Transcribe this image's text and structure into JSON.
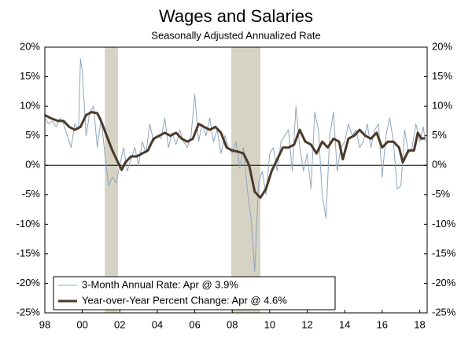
{
  "chart_data": {
    "type": "line",
    "title": "Wages and Salaries",
    "subtitle": "Seasonally Adjusted Annualized Rate",
    "xlim": [
      1998,
      2018.4
    ],
    "xticks": [
      {
        "value": 1998,
        "label": "98"
      },
      {
        "value": 2000,
        "label": "00"
      },
      {
        "value": 2002,
        "label": "02"
      },
      {
        "value": 2004,
        "label": "04"
      },
      {
        "value": 2006,
        "label": "06"
      },
      {
        "value": 2008,
        "label": "08"
      },
      {
        "value": 2010,
        "label": "10"
      },
      {
        "value": 2012,
        "label": "12"
      },
      {
        "value": 2014,
        "label": "14"
      },
      {
        "value": 2016,
        "label": "16"
      },
      {
        "value": 2018,
        "label": "18"
      }
    ],
    "ylim": [
      -25,
      20
    ],
    "yticks": [
      {
        "value": 20,
        "label": "20%"
      },
      {
        "value": 15,
        "label": "15%"
      },
      {
        "value": 10,
        "label": "10%"
      },
      {
        "value": 5,
        "label": "5%"
      },
      {
        "value": 0,
        "label": "0%"
      },
      {
        "value": -5,
        "label": "-5%"
      },
      {
        "value": -10,
        "label": "-10%"
      },
      {
        "value": -15,
        "label": "-15%"
      },
      {
        "value": -20,
        "label": "-20%"
      },
      {
        "value": -25,
        "label": "-25%"
      }
    ],
    "shaded_ranges": [
      [
        2001.2,
        2001.9
      ],
      [
        2007.95,
        2009.5
      ]
    ],
    "shade_color": "#d6d3c4",
    "legend": "lower left",
    "series": [
      {
        "name": "3-Month Annual Rate: Apr @ 3.9%",
        "color": "#8fa5bd",
        "width": 1,
        "x": [
          1998.0,
          1998.2,
          1998.4,
          1998.6,
          1998.8,
          1999.0,
          1999.2,
          1999.4,
          1999.6,
          1999.8,
          1999.9,
          2000.0,
          2000.2,
          2000.4,
          2000.6,
          2000.8,
          2001.0,
          2001.2,
          2001.4,
          2001.6,
          2001.8,
          2002.0,
          2002.2,
          2002.4,
          2002.6,
          2002.8,
          2003.0,
          2003.2,
          2003.4,
          2003.6,
          2003.8,
          2004.0,
          2004.2,
          2004.4,
          2004.6,
          2004.8,
          2005.0,
          2005.2,
          2005.4,
          2005.6,
          2005.8,
          2006.0,
          2006.2,
          2006.4,
          2006.6,
          2006.8,
          2007.0,
          2007.2,
          2007.4,
          2007.6,
          2007.8,
          2008.0,
          2008.2,
          2008.4,
          2008.6,
          2008.8,
          2009.0,
          2009.2,
          2009.4,
          2009.6,
          2009.8,
          2010.0,
          2010.2,
          2010.4,
          2010.6,
          2010.8,
          2011.0,
          2011.2,
          2011.4,
          2011.6,
          2011.8,
          2012.0,
          2012.2,
          2012.4,
          2012.6,
          2012.8,
          2013.0,
          2013.2,
          2013.4,
          2013.6,
          2013.8,
          2014.0,
          2014.2,
          2014.4,
          2014.6,
          2014.8,
          2015.0,
          2015.2,
          2015.4,
          2015.6,
          2015.8,
          2016.0,
          2016.2,
          2016.4,
          2016.6,
          2016.8,
          2017.0,
          2017.2,
          2017.4,
          2017.6,
          2017.8,
          2018.0,
          2018.2,
          2018.3
        ],
        "values": [
          8,
          7,
          7.5,
          6.5,
          8,
          7,
          5,
          3,
          7,
          6,
          18,
          16,
          5,
          9,
          10,
          3,
          8,
          2,
          -3.5,
          -2,
          -3,
          0,
          3,
          -1,
          1,
          3,
          0,
          4,
          2,
          7,
          4,
          5,
          4.5,
          8,
          3,
          5.5,
          3.5,
          6,
          4,
          3,
          5,
          12,
          4,
          7,
          5,
          8,
          4,
          6,
          2,
          5,
          3,
          2,
          4,
          -0.5,
          3,
          -4,
          -9,
          -18,
          -3,
          -1,
          -5,
          2,
          3,
          -1,
          4,
          5,
          6,
          -1,
          10,
          3,
          -1,
          2,
          -4,
          9,
          6,
          -5,
          -9,
          5,
          9,
          -1,
          3,
          4,
          7,
          5,
          6,
          3,
          4,
          7,
          3,
          6,
          7,
          -2,
          5,
          8,
          4,
          -4,
          -3.5,
          6,
          2,
          3,
          7,
          4,
          6.5,
          3.9
        ]
      },
      {
        "name": "Year-over-Year Percent Change: Apr @ 4.6%",
        "color": "#4a3a2a",
        "width": 3,
        "x": [
          1998.0,
          1998.3,
          1998.7,
          1999.0,
          1999.3,
          1999.6,
          1999.9,
          2000.2,
          2000.5,
          2000.8,
          2001.0,
          2001.3,
          2001.6,
          2001.9,
          2002.1,
          2002.3,
          2002.6,
          2002.9,
          2003.2,
          2003.5,
          2003.8,
          2004.1,
          2004.4,
          2004.7,
          2005.0,
          2005.3,
          2005.6,
          2005.9,
          2006.2,
          2006.5,
          2006.8,
          2007.1,
          2007.4,
          2007.7,
          2008.0,
          2008.3,
          2008.6,
          2008.9,
          2009.2,
          2009.5,
          2009.8,
          2010.1,
          2010.4,
          2010.7,
          2011.0,
          2011.3,
          2011.6,
          2011.9,
          2012.2,
          2012.5,
          2012.8,
          2013.1,
          2013.4,
          2013.7,
          2013.9,
          2014.2,
          2014.5,
          2014.8,
          2015.1,
          2015.4,
          2015.7,
          2016.0,
          2016.3,
          2016.6,
          2016.9,
          2017.1,
          2017.4,
          2017.7,
          2017.9,
          2018.1,
          2018.3
        ],
        "values": [
          8.5,
          8,
          7.5,
          7.5,
          6.5,
          6,
          6.5,
          8.5,
          9,
          8.8,
          7.5,
          5,
          2.5,
          0.5,
          -0.8,
          0.5,
          1.5,
          1.5,
          2,
          2.5,
          4.5,
          5,
          5.5,
          5,
          5.5,
          4.5,
          4,
          4.5,
          7,
          6.5,
          6,
          6.5,
          5.5,
          3,
          2.5,
          2.3,
          2,
          0,
          -4.5,
          -5.5,
          -4,
          -1,
          1,
          3,
          3,
          3.5,
          6,
          4,
          3.5,
          2,
          4,
          3,
          4.5,
          4,
          1,
          4.5,
          5,
          6,
          5,
          4.5,
          5.5,
          3,
          4,
          4,
          3,
          0.5,
          2.5,
          2.5,
          5.5,
          4.5,
          4.6
        ]
      }
    ]
  }
}
